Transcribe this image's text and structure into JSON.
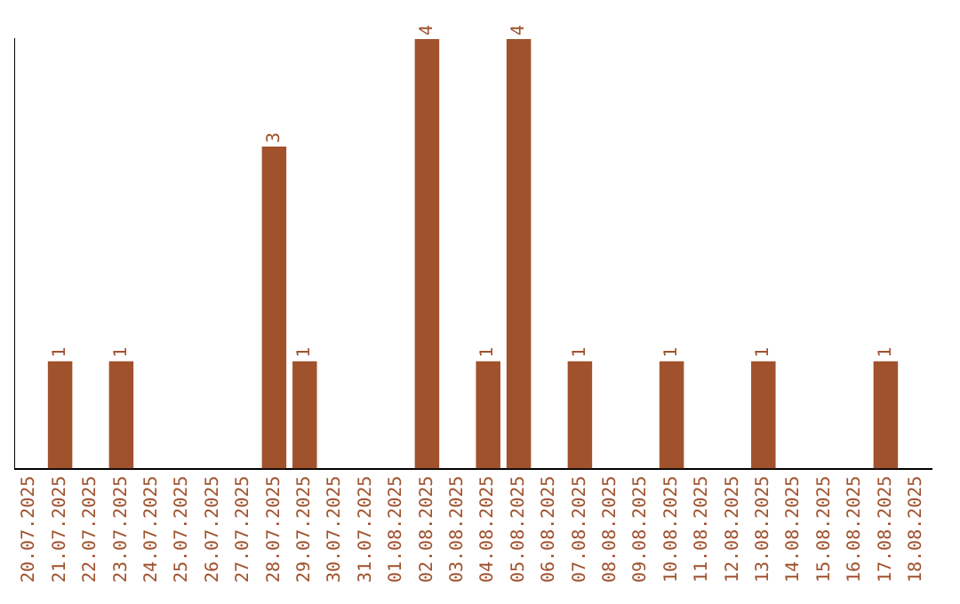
{
  "chart_data": {
    "type": "bar",
    "categories": [
      "20.07.2025",
      "21.07.2025",
      "22.07.2025",
      "23.07.2025",
      "24.07.2025",
      "25.07.2025",
      "26.07.2025",
      "27.07.2025",
      "28.07.2025",
      "29.07.2025",
      "30.07.2025",
      "31.07.2025",
      "01.08.2025",
      "02.08.2025",
      "03.08.2025",
      "04.08.2025",
      "05.08.2025",
      "06.08.2025",
      "07.08.2025",
      "08.08.2025",
      "09.08.2025",
      "10.08.2025",
      "11.08.2025",
      "12.08.2025",
      "13.08.2025",
      "14.08.2025",
      "15.08.2025",
      "16.08.2025",
      "17.08.2025",
      "18.08.2025"
    ],
    "values": [
      0,
      1,
      0,
      1,
      0,
      0,
      0,
      0,
      3,
      1,
      0,
      0,
      0,
      4,
      0,
      1,
      4,
      0,
      1,
      0,
      0,
      1,
      0,
      0,
      1,
      0,
      0,
      0,
      1,
      0
    ],
    "value_labels": [
      null,
      "1",
      null,
      "1",
      null,
      null,
      null,
      null,
      "3",
      "1",
      null,
      null,
      null,
      "4",
      null,
      "1",
      "4",
      null,
      "1",
      null,
      null,
      "1",
      null,
      null,
      "1",
      null,
      null,
      null,
      "1",
      null
    ],
    "color": "#a0522d",
    "grid": false,
    "legend": false,
    "tick_labels": "x"
  }
}
